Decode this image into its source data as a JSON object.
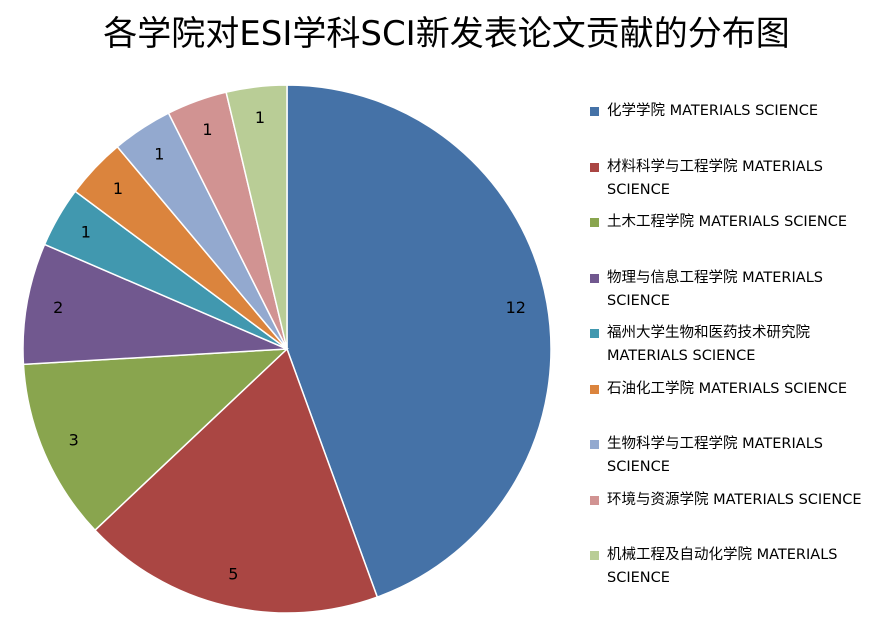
{
  "chart_data": {
    "type": "pie",
    "title": "各学院对ESI学科SCI新发表论文贡献的分布图",
    "legend_position": "right",
    "slices": [
      {
        "label": "化学学院 MATERIALS SCIENCE",
        "value": 12,
        "value_label": "12",
        "color": "#4572A7"
      },
      {
        "label": "材料科学与工程学院 MATERIALS SCIENCE",
        "value": 5,
        "value_label": "5",
        "color": "#AA4643"
      },
      {
        "label": "土木工程学院 MATERIALS SCIENCE",
        "value": 3,
        "value_label": "3",
        "color": "#89A54E"
      },
      {
        "label": "物理与信息工程学院 MATERIALS SCIENCE",
        "value": 2,
        "value_label": "2",
        "color": "#71588F"
      },
      {
        "label": "福州大学生物和医药技术研究院 MATERIALS SCIENCE",
        "value": 1,
        "value_label": "1",
        "color": "#4198AF"
      },
      {
        "label": "石油化工学院 MATERIALS SCIENCE",
        "value": 1,
        "value_label": "1",
        "color": "#DB843D"
      },
      {
        "label": "生物科学与工程学院 MATERIALS SCIENCE",
        "value": 1,
        "value_label": "1",
        "color": "#93A9CF"
      },
      {
        "label": "环境与资源学院 MATERIALS SCIENCE",
        "value": 1,
        "value_label": "1",
        "color": "#D19392"
      },
      {
        "label": "机械工程及自动化学院 MATERIALS SCIENCE",
        "value": 1,
        "value_label": "1",
        "color": "#B9CD96"
      }
    ]
  }
}
